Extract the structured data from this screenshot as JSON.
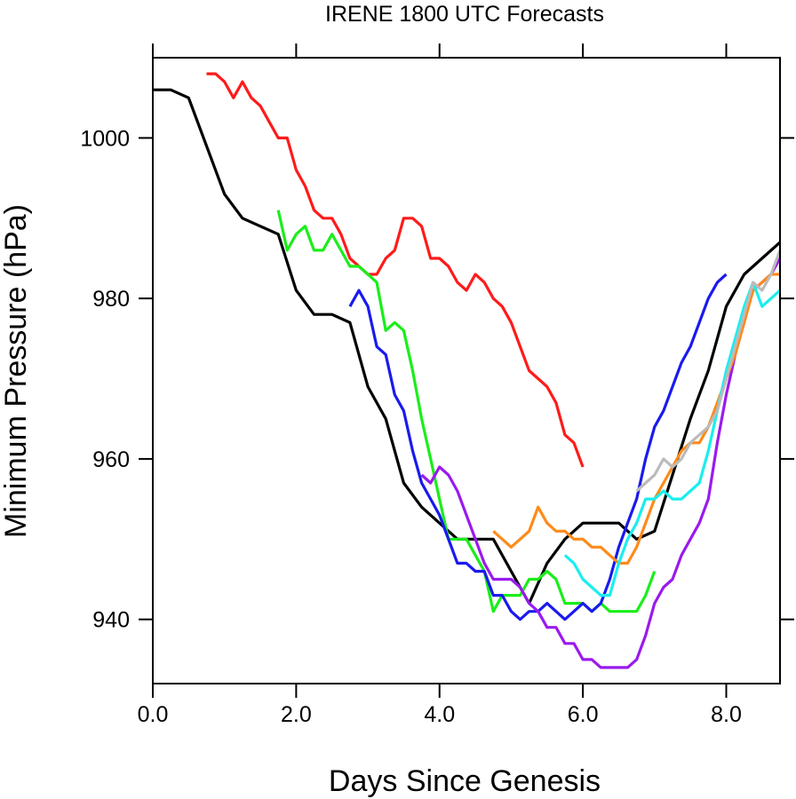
{
  "chart_data": {
    "type": "line",
    "title": "IRENE 1800 UTC Forecasts",
    "xlabel": "Days Since Genesis",
    "ylabel": "Minimum Pressure (hPa)",
    "xlim": [
      0,
      8.75
    ],
    "ylim": [
      932,
      1010
    ],
    "xticks": [
      0,
      2,
      4,
      6,
      8
    ],
    "xtick_labels": [
      "0.0",
      "2.0",
      "4.0",
      "6.0",
      "8.0"
    ],
    "yticks": [
      940,
      960,
      980,
      1000
    ],
    "ytick_labels": [
      "940",
      "960",
      "980",
      "1000"
    ],
    "grid": false,
    "legend": "none",
    "series": [
      {
        "color": "#000000",
        "x": [
          0,
          0.25,
          0.5,
          0.75,
          1,
          1.25,
          1.5,
          1.75,
          2,
          2.25,
          2.5,
          2.75,
          3,
          3.25,
          3.5,
          3.75,
          4,
          4.25,
          4.5,
          4.75,
          5,
          5.25,
          5.5,
          5.75,
          6,
          6.25,
          6.5,
          6.75,
          7,
          7.25,
          7.5,
          7.75,
          8,
          8.25,
          8.5,
          8.75
        ],
        "y": [
          1006,
          1006,
          1005,
          999,
          993,
          990,
          989,
          988,
          981,
          978,
          978,
          977,
          969,
          965,
          957,
          954,
          952,
          950,
          950,
          950,
          946,
          942,
          947,
          950,
          952,
          952,
          952,
          950,
          951,
          958,
          965,
          971,
          979,
          983,
          985,
          987
        ]
      },
      {
        "color": "#ff1a1a",
        "x": [
          0.75,
          0.875,
          1,
          1.125,
          1.25,
          1.375,
          1.5,
          1.625,
          1.75,
          1.875,
          2,
          2.125,
          2.25,
          2.375,
          2.5,
          2.625,
          2.75,
          2.875,
          3,
          3.125,
          3.25,
          3.375,
          3.5,
          3.625,
          3.75,
          3.875,
          4,
          4.125,
          4.25,
          4.375,
          4.5,
          4.625,
          4.75,
          4.875,
          5,
          5.125,
          5.25,
          5.375,
          5.5,
          5.625,
          5.75,
          5.875,
          6
        ],
        "y": [
          1008,
          1008,
          1007,
          1005,
          1007,
          1005,
          1004,
          1002,
          1000,
          1000,
          996,
          994,
          991,
          990,
          990,
          988,
          985,
          984,
          983,
          983,
          985,
          986,
          990,
          990,
          989,
          985,
          985,
          984,
          982,
          981,
          983,
          982,
          980,
          979,
          977,
          974,
          971,
          970,
          969,
          967,
          963,
          962,
          959
        ]
      },
      {
        "color": "#1aee1a",
        "x": [
          1.75,
          1.875,
          2,
          2.125,
          2.25,
          2.375,
          2.5,
          2.625,
          2.75,
          2.875,
          3,
          3.125,
          3.25,
          3.375,
          3.5,
          3.625,
          3.75,
          3.875,
          4,
          4.125,
          4.25,
          4.375,
          4.5,
          4.625,
          4.75,
          4.875,
          5,
          5.125,
          5.25,
          5.375,
          5.5,
          5.625,
          5.75,
          5.875,
          6,
          6.125,
          6.25,
          6.375,
          6.5,
          6.625,
          6.75,
          6.875,
          7
        ],
        "y": [
          991,
          986,
          988,
          989,
          986,
          986,
          988,
          986,
          984,
          984,
          983,
          982,
          976,
          977,
          976,
          971,
          965,
          960,
          955,
          950,
          950,
          950,
          948,
          946,
          941,
          943,
          943,
          943,
          945,
          945,
          946,
          945,
          942,
          942,
          942,
          941,
          942,
          941,
          941,
          941,
          941,
          943,
          946
        ]
      },
      {
        "color": "#1a1aee",
        "x": [
          2.75,
          2.875,
          3,
          3.125,
          3.25,
          3.375,
          3.5,
          3.625,
          3.75,
          3.875,
          4,
          4.125,
          4.25,
          4.375,
          4.5,
          4.625,
          4.75,
          4.875,
          5,
          5.125,
          5.25,
          5.375,
          5.5,
          5.625,
          5.75,
          5.875,
          6,
          6.125,
          6.25,
          6.375,
          6.5,
          6.625,
          6.75,
          6.875,
          7,
          7.125,
          7.25,
          7.375,
          7.5,
          7.625,
          7.75,
          7.875,
          8
        ],
        "y": [
          979,
          981,
          979,
          974,
          973,
          968,
          966,
          961,
          957,
          955,
          953,
          950,
          947,
          947,
          946,
          946,
          943,
          943,
          941,
          940,
          941,
          941,
          942,
          941,
          940,
          941,
          942,
          941,
          942,
          945,
          949,
          952,
          955,
          960,
          964,
          966,
          969,
          972,
          974,
          977,
          980,
          982,
          983
        ]
      },
      {
        "color": "#9a1aee",
        "x": [
          3.75,
          3.875,
          4,
          4.125,
          4.25,
          4.375,
          4.5,
          4.625,
          4.75,
          4.875,
          5,
          5.125,
          5.25,
          5.375,
          5.5,
          5.625,
          5.75,
          5.875,
          6,
          6.125,
          6.25,
          6.375,
          6.5,
          6.625,
          6.75,
          6.875,
          7,
          7.125,
          7.25,
          7.375,
          7.5,
          7.625,
          7.75,
          7.875,
          8,
          8.125,
          8.25,
          8.375,
          8.5,
          8.625,
          8.75
        ],
        "y": [
          958,
          957,
          959,
          958,
          956,
          953,
          950,
          947,
          945,
          945,
          945,
          944,
          942,
          941,
          939,
          939,
          937,
          937,
          935,
          935,
          934,
          934,
          934,
          934,
          935,
          938,
          942,
          944,
          945,
          948,
          950,
          952,
          955,
          962,
          968,
          973,
          978,
          981,
          982,
          983,
          985
        ]
      },
      {
        "color": "#ff8a1a",
        "x": [
          4.75,
          4.875,
          5,
          5.125,
          5.25,
          5.375,
          5.5,
          5.625,
          5.75,
          5.875,
          6,
          6.125,
          6.25,
          6.375,
          6.5,
          6.625,
          6.75,
          6.875,
          7,
          7.125,
          7.25,
          7.375,
          7.5,
          7.625,
          7.75,
          7.875,
          8,
          8.125,
          8.25,
          8.375,
          8.5,
          8.625,
          8.75
        ],
        "y": [
          951,
          950,
          949,
          950,
          951,
          954,
          952,
          951,
          951,
          950,
          950,
          949,
          949,
          948,
          947,
          947,
          949,
          952,
          955,
          957,
          959,
          961,
          962,
          962,
          964,
          967,
          970,
          973,
          977,
          981,
          982,
          983,
          983
        ]
      },
      {
        "color": "#1aeeee",
        "x": [
          5.75,
          5.875,
          6,
          6.125,
          6.25,
          6.375,
          6.5,
          6.625,
          6.75,
          6.875,
          7,
          7.125,
          7.25,
          7.375,
          7.5,
          7.625,
          7.75,
          7.875,
          8,
          8.125,
          8.25,
          8.375,
          8.5,
          8.625,
          8.75
        ],
        "y": [
          948,
          947,
          945,
          944,
          943,
          943,
          947,
          950,
          952,
          955,
          955,
          956,
          955,
          955,
          956,
          957,
          961,
          966,
          971,
          975,
          979,
          982,
          979,
          980,
          981
        ]
      },
      {
        "color": "#bbbbbb",
        "x": [
          6.75,
          6.875,
          7,
          7.125,
          7.25,
          7.375,
          7.5,
          7.625,
          7.75,
          7.875,
          8,
          8.125,
          8.25,
          8.375,
          8.5,
          8.625,
          8.75
        ],
        "y": [
          956,
          957,
          958,
          960,
          959,
          960,
          962,
          963,
          964,
          966,
          970,
          974,
          978,
          982,
          981,
          983,
          986
        ]
      }
    ]
  }
}
